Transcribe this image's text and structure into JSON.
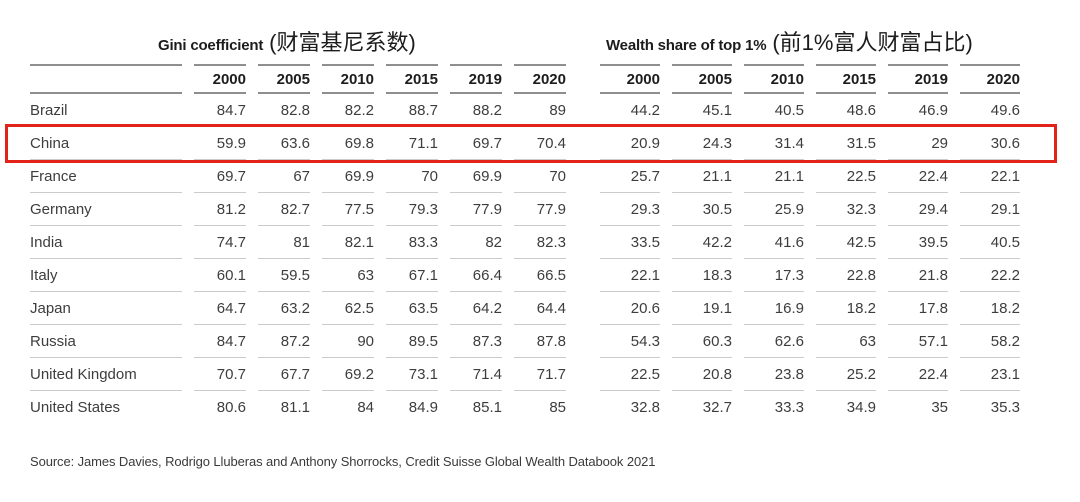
{
  "chart_data": {
    "type": "table",
    "sections": [
      {
        "title_en": "Gini coefficient",
        "title_cn": "(财富基尼系数)",
        "years": [
          "2000",
          "2005",
          "2010",
          "2015",
          "2019",
          "2020"
        ]
      },
      {
        "title_en": "Wealth share of top 1%",
        "title_cn": "(前1%富人财富占比)",
        "years": [
          "2000",
          "2005",
          "2010",
          "2015",
          "2019",
          "2020"
        ]
      }
    ],
    "rows": [
      {
        "country": "Brazil",
        "highlight": false,
        "gini": [
          "84.7",
          "82.8",
          "82.2",
          "88.7",
          "88.2",
          "89"
        ],
        "wealth": [
          "44.2",
          "45.1",
          "40.5",
          "48.6",
          "46.9",
          "49.6"
        ]
      },
      {
        "country": "China",
        "highlight": true,
        "gini": [
          "59.9",
          "63.6",
          "69.8",
          "71.1",
          "69.7",
          "70.4"
        ],
        "wealth": [
          "20.9",
          "24.3",
          "31.4",
          "31.5",
          "29",
          "30.6"
        ]
      },
      {
        "country": "France",
        "highlight": false,
        "gini": [
          "69.7",
          "67",
          "69.9",
          "70",
          "69.9",
          "70"
        ],
        "wealth": [
          "25.7",
          "21.1",
          "21.1",
          "22.5",
          "22.4",
          "22.1"
        ]
      },
      {
        "country": "Germany",
        "highlight": false,
        "gini": [
          "81.2",
          "82.7",
          "77.5",
          "79.3",
          "77.9",
          "77.9"
        ],
        "wealth": [
          "29.3",
          "30.5",
          "25.9",
          "32.3",
          "29.4",
          "29.1"
        ]
      },
      {
        "country": "India",
        "highlight": false,
        "gini": [
          "74.7",
          "81",
          "82.1",
          "83.3",
          "82",
          "82.3"
        ],
        "wealth": [
          "33.5",
          "42.2",
          "41.6",
          "42.5",
          "39.5",
          "40.5"
        ]
      },
      {
        "country": "Italy",
        "highlight": false,
        "gini": [
          "60.1",
          "59.5",
          "63",
          "67.1",
          "66.4",
          "66.5"
        ],
        "wealth": [
          "22.1",
          "18.3",
          "17.3",
          "22.8",
          "21.8",
          "22.2"
        ]
      },
      {
        "country": "Japan",
        "highlight": false,
        "gini": [
          "64.7",
          "63.2",
          "62.5",
          "63.5",
          "64.2",
          "64.4"
        ],
        "wealth": [
          "20.6",
          "19.1",
          "16.9",
          "18.2",
          "17.8",
          "18.2"
        ]
      },
      {
        "country": "Russia",
        "highlight": false,
        "gini": [
          "84.7",
          "87.2",
          "90",
          "89.5",
          "87.3",
          "87.8"
        ],
        "wealth": [
          "54.3",
          "60.3",
          "62.6",
          "63",
          "57.1",
          "58.2"
        ]
      },
      {
        "country": "United Kingdom",
        "highlight": false,
        "gini": [
          "70.7",
          "67.7",
          "69.2",
          "73.1",
          "71.4",
          "71.7"
        ],
        "wealth": [
          "22.5",
          "20.8",
          "23.8",
          "25.2",
          "22.4",
          "23.1"
        ]
      },
      {
        "country": "United States",
        "highlight": false,
        "gini": [
          "80.6",
          "81.1",
          "84",
          "84.9",
          "85.1",
          "85"
        ],
        "wealth": [
          "32.8",
          "32.7",
          "33.3",
          "34.9",
          "35",
          "35.3"
        ]
      }
    ],
    "highlighted_row": "China",
    "source": "Source: James Davies, Rodrigo Lluberas and Anthony Shorrocks, Credit Suisse Global Wealth Databook 2021"
  },
  "colors": {
    "accent_red": "#e2231a",
    "header_rule": "#8f8f8f",
    "row_rule": "#cbcbcb",
    "text_dark": "#1c1c1c",
    "text_body": "#3d3d3d"
  }
}
